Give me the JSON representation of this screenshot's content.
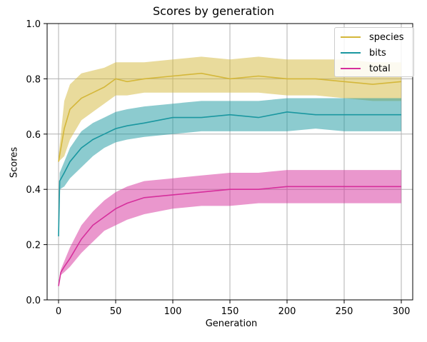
{
  "chart_data": {
    "type": "line",
    "title": "Scores by generation",
    "xlabel": "Generation",
    "ylabel": "Scores",
    "xlim": [
      -10,
      310
    ],
    "ylim": [
      0.0,
      1.0
    ],
    "xticks": [
      0,
      50,
      100,
      150,
      200,
      250,
      300
    ],
    "yticks": [
      0.0,
      0.2,
      0.4,
      0.6,
      0.8,
      1.0
    ],
    "xtick_labels": [
      "0",
      "50",
      "100",
      "150",
      "200",
      "250",
      "300"
    ],
    "ytick_labels": [
      "0.0",
      "0.2",
      "0.4",
      "0.6",
      "0.8",
      "1.0"
    ],
    "grid": true,
    "legend_position": "top-right",
    "series": [
      {
        "name": "species",
        "color": "#d4b73a",
        "x": [
          0,
          5,
          10,
          20,
          30,
          40,
          50,
          60,
          75,
          100,
          125,
          150,
          175,
          200,
          225,
          250,
          275,
          300
        ],
        "mean": [
          0.5,
          0.62,
          0.69,
          0.73,
          0.75,
          0.77,
          0.8,
          0.79,
          0.8,
          0.81,
          0.82,
          0.8,
          0.81,
          0.8,
          0.8,
          0.79,
          0.78,
          0.79
        ],
        "lower": [
          0.5,
          0.52,
          0.58,
          0.65,
          0.68,
          0.71,
          0.74,
          0.74,
          0.75,
          0.75,
          0.75,
          0.75,
          0.75,
          0.74,
          0.74,
          0.73,
          0.72,
          0.72
        ],
        "upper": [
          0.52,
          0.72,
          0.78,
          0.82,
          0.83,
          0.84,
          0.86,
          0.86,
          0.86,
          0.87,
          0.88,
          0.87,
          0.88,
          0.87,
          0.87,
          0.87,
          0.86,
          0.86
        ]
      },
      {
        "name": "bits",
        "color": "#1a97a0",
        "x": [
          0,
          1,
          5,
          10,
          20,
          30,
          40,
          50,
          60,
          75,
          100,
          125,
          150,
          175,
          200,
          225,
          250,
          275,
          300
        ],
        "mean": [
          0.23,
          0.43,
          0.46,
          0.5,
          0.55,
          0.58,
          0.6,
          0.62,
          0.63,
          0.64,
          0.66,
          0.66,
          0.67,
          0.66,
          0.68,
          0.67,
          0.67,
          0.67,
          0.67
        ],
        "lower": [
          0.23,
          0.4,
          0.41,
          0.44,
          0.48,
          0.52,
          0.55,
          0.57,
          0.58,
          0.59,
          0.6,
          0.61,
          0.61,
          0.61,
          0.61,
          0.62,
          0.61,
          0.61,
          0.61
        ],
        "upper": [
          0.24,
          0.46,
          0.5,
          0.55,
          0.61,
          0.64,
          0.66,
          0.68,
          0.69,
          0.7,
          0.71,
          0.72,
          0.72,
          0.72,
          0.73,
          0.73,
          0.73,
          0.73,
          0.73
        ]
      },
      {
        "name": "total",
        "color": "#d62f9c",
        "x": [
          0,
          2,
          5,
          10,
          20,
          30,
          40,
          50,
          60,
          75,
          100,
          125,
          150,
          175,
          200,
          225,
          250,
          275,
          300
        ],
        "mean": [
          0.05,
          0.1,
          0.12,
          0.15,
          0.22,
          0.27,
          0.3,
          0.33,
          0.35,
          0.37,
          0.38,
          0.39,
          0.4,
          0.4,
          0.41,
          0.41,
          0.41,
          0.41,
          0.41
        ],
        "lower": [
          0.05,
          0.09,
          0.1,
          0.12,
          0.17,
          0.21,
          0.25,
          0.27,
          0.29,
          0.31,
          0.33,
          0.34,
          0.34,
          0.35,
          0.35,
          0.35,
          0.35,
          0.35,
          0.35
        ],
        "upper": [
          0.06,
          0.11,
          0.14,
          0.19,
          0.27,
          0.32,
          0.36,
          0.39,
          0.41,
          0.43,
          0.44,
          0.45,
          0.46,
          0.46,
          0.47,
          0.47,
          0.47,
          0.47,
          0.47
        ]
      }
    ]
  }
}
